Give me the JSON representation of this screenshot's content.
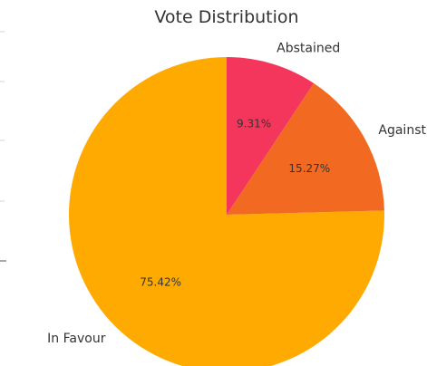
{
  "chart_data": {
    "type": "pie",
    "title": "Vote Distribution",
    "slices": [
      {
        "label": "In Favour",
        "value": 75.42,
        "display": "75.42%",
        "color": "#ffaa00"
      },
      {
        "label": "Against",
        "value": 15.27,
        "display": "15.27%",
        "color": "#f26a21"
      },
      {
        "label": "Abstained",
        "value": 9.31,
        "display": "9.31%",
        "color": "#f5365c"
      }
    ],
    "start_angle_deg": 90,
    "direction": "counterclockwise",
    "legend": "none"
  }
}
